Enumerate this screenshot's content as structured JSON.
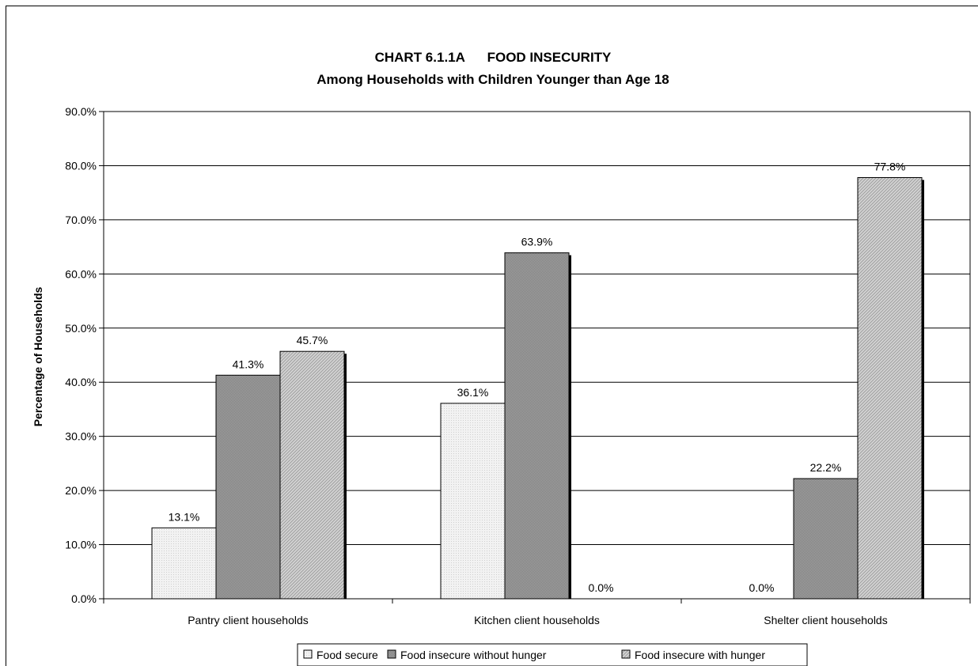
{
  "chart_data": {
    "type": "bar",
    "title": "CHART 6.1.1A      FOOD INSECURITY",
    "subtitle": "Among Households with Children Younger than Age 18",
    "xlabel": "",
    "ylabel": "Percentage of Households",
    "ylim": [
      0,
      90
    ],
    "yticks": [
      "0.0%",
      "10.0%",
      "20.0%",
      "30.0%",
      "40.0%",
      "50.0%",
      "60.0%",
      "70.0%",
      "80.0%",
      "90.0%"
    ],
    "grid": true,
    "legend_position": "bottom",
    "categories": [
      "Pantry client households",
      "Kitchen client households",
      "Shelter client households"
    ],
    "series": [
      {
        "name": "Food secure",
        "values": [
          13.1,
          36.1,
          0.0
        ],
        "labels": [
          "13.1%",
          "36.1%",
          "0.0%"
        ],
        "color": "#eeeeee",
        "pattern": "dots"
      },
      {
        "name": "Food insecure without hunger",
        "values": [
          41.3,
          63.9,
          22.2
        ],
        "labels": [
          "41.3%",
          "63.9%",
          "22.2%"
        ],
        "color": "#9a9a9a",
        "pattern": "fine"
      },
      {
        "name": "Food insecure with hunger",
        "values": [
          45.7,
          0.0,
          77.8
        ],
        "labels": [
          "45.7%",
          "0.0%",
          "77.8%"
        ],
        "color": "#c4c4c4",
        "pattern": "diagonal"
      }
    ]
  }
}
